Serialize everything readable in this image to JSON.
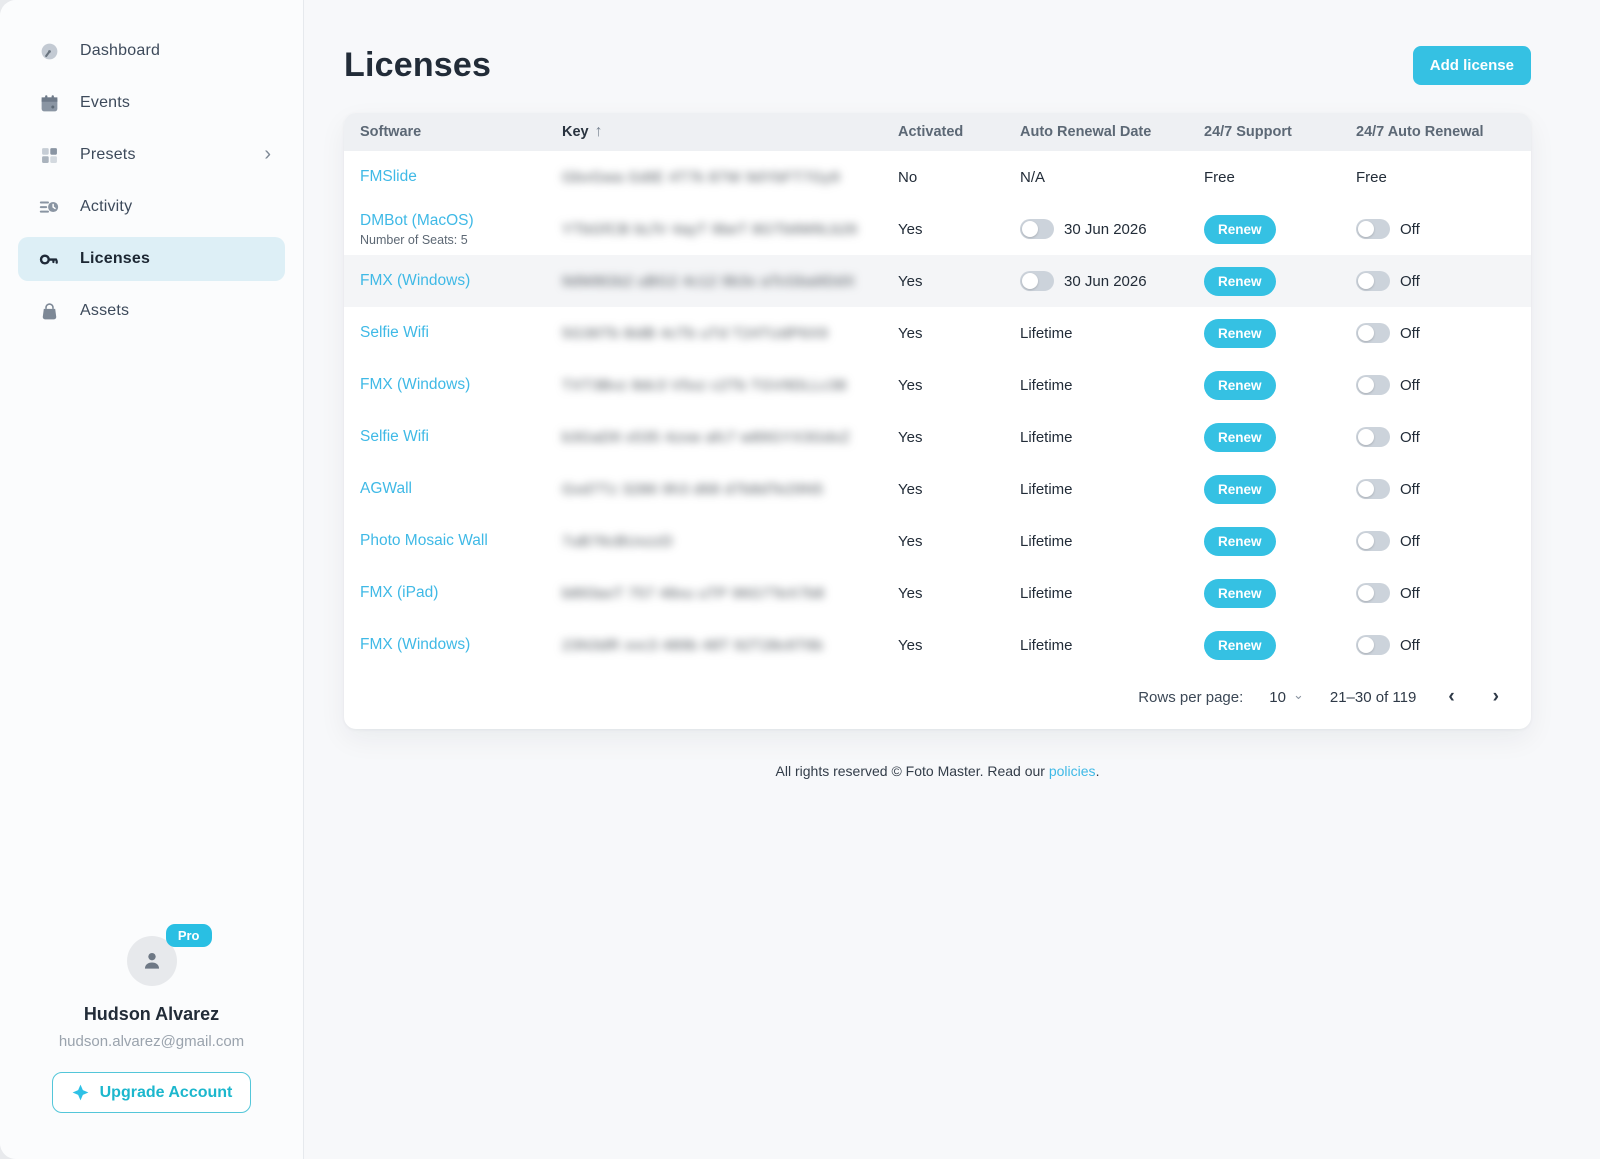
{
  "sidebar": {
    "items": [
      {
        "label": "Dashboard",
        "icon": "gauge-icon",
        "active": false,
        "chevron": false
      },
      {
        "label": "Events",
        "icon": "calendar-icon",
        "active": false,
        "chevron": false
      },
      {
        "label": "Presets",
        "icon": "grid-icon",
        "active": false,
        "chevron": true
      },
      {
        "label": "Activity",
        "icon": "activity-icon",
        "active": false,
        "chevron": false
      },
      {
        "label": "Licenses",
        "icon": "key-icon",
        "active": true,
        "chevron": false
      },
      {
        "label": "Assets",
        "icon": "bag-icon",
        "active": false,
        "chevron": false
      }
    ],
    "profile": {
      "badge": "Pro",
      "name": "Hudson Alvarez",
      "email": "hudson.alvarez@gmail.com",
      "upgrade_label": "Upgrade Account"
    }
  },
  "header": {
    "title": "Licenses",
    "add_button": "Add license"
  },
  "table": {
    "columns": [
      "Software",
      "Key",
      "Activated",
      "Auto Renewal Date",
      "24/7 Support",
      "24/7 Auto Renewal"
    ],
    "sort_column": "Key",
    "sort_direction": "asc",
    "rows": [
      {
        "software": "FMSlide",
        "subtitle": "",
        "key": "GbvGwa GdtE 4T7k 87W 9dYbFT7Gy9",
        "activated": "No",
        "renewal_date": {
          "type": "text",
          "value": "N/A"
        },
        "support": {
          "type": "text",
          "value": "Free"
        },
        "auto_renewal": {
          "type": "text",
          "value": "Free"
        },
        "hovered": false
      },
      {
        "software": "DMBot (MacOS)",
        "subtitle": "Number of Seats: 5",
        "key": "YTbGfCB bLfV 4ayT 9beT 8GTb6M9Lb26",
        "activated": "Yes",
        "renewal_date": {
          "type": "toggle_date",
          "value": "30 Jun 2026"
        },
        "support": {
          "type": "renew",
          "value": "Renew"
        },
        "auto_renewal": {
          "type": "toggle",
          "value": "Off"
        },
        "hovered": false
      },
      {
        "software": "FMX (Windows)",
        "subtitle": "",
        "key": "9dW8Gb2 uBG2 4c12 9b3x aTcGba9DdX",
        "activated": "Yes",
        "renewal_date": {
          "type": "toggle_date",
          "value": "30 Jun 2026"
        },
        "support": {
          "type": "renew",
          "value": "Renew"
        },
        "auto_renewal": {
          "type": "toggle",
          "value": "Off"
        },
        "hovered": true
      },
      {
        "software": "Selfie Wifi",
        "subtitle": "",
        "key": "5G36Tb 8idB 4cTb uTd T24TUdP6X9",
        "activated": "Yes",
        "renewal_date": {
          "type": "text",
          "value": "Lifetime"
        },
        "support": {
          "type": "renew",
          "value": "Renew"
        },
        "auto_renewal": {
          "type": "toggle",
          "value": "Off"
        },
        "hovered": false
      },
      {
        "software": "FMX (Windows)",
        "subtitle": "",
        "key": "TXT3Bvz 8dc3 V5xz c2Tb TGV9DLLc38",
        "activated": "Yes",
        "renewal_date": {
          "type": "text",
          "value": "Lifetime"
        },
        "support": {
          "type": "renew",
          "value": "Renew"
        },
        "auto_renewal": {
          "type": "toggle",
          "value": "Off"
        },
        "hovered": false
      },
      {
        "software": "Selfie Wifi",
        "subtitle": "",
        "key": "b3GaD9 x535 4zxw afc7 w89GYX3GdxZ",
        "activated": "Yes",
        "renewal_date": {
          "type": "text",
          "value": "Lifetime"
        },
        "support": {
          "type": "renew",
          "value": "Renew"
        },
        "auto_renewal": {
          "type": "toggle",
          "value": "Off"
        },
        "hovered": false
      },
      {
        "software": "AGWall",
        "subtitle": "",
        "key": "Gxd7Tz 3286 9h3 d68 d7b8dTe29N5",
        "activated": "Yes",
        "renewal_date": {
          "type": "text",
          "value": "Lifetime"
        },
        "support": {
          "type": "renew",
          "value": "Renew"
        },
        "auto_renewal": {
          "type": "toggle",
          "value": "Off"
        },
        "hovered": false
      },
      {
        "software": "Photo Mosaic Wall",
        "subtitle": "",
        "key": "7uB76cBUxzzD",
        "activated": "Yes",
        "renewal_date": {
          "type": "text",
          "value": "Lifetime"
        },
        "support": {
          "type": "renew",
          "value": "Renew"
        },
        "auto_renewal": {
          "type": "toggle",
          "value": "Off"
        },
        "hovered": false
      },
      {
        "software": "FMX (iPad)",
        "subtitle": "",
        "key": "b893axT 757 48xu uTP 96G7TeX7b8",
        "activated": "Yes",
        "renewal_date": {
          "type": "text",
          "value": "Lifetime"
        },
        "support": {
          "type": "renew",
          "value": "Renew"
        },
        "auto_renewal": {
          "type": "toggle",
          "value": "Off"
        },
        "hovered": false
      },
      {
        "software": "FMX (Windows)",
        "subtitle": "",
        "key": "23N3dR xvc3 489b 48T 92T28c6T6b",
        "activated": "Yes",
        "renewal_date": {
          "type": "text",
          "value": "Lifetime"
        },
        "support": {
          "type": "renew",
          "value": "Renew"
        },
        "auto_renewal": {
          "type": "toggle",
          "value": "Off"
        },
        "hovered": false
      }
    ]
  },
  "pagination": {
    "rows_per_page_label": "Rows per page:",
    "rows_per_page": "10",
    "range": "21–30 of 119",
    "prev": "‹",
    "next": "›"
  },
  "footer": {
    "text_before": "All rights reserved © Foto Master. Read our ",
    "link": "policies",
    "text_after": "."
  },
  "colors": {
    "accent": "#35c1e3",
    "link": "#3fb9e6",
    "active_nav_bg": "#ddeff6",
    "header_bg": "#eef0f3"
  }
}
